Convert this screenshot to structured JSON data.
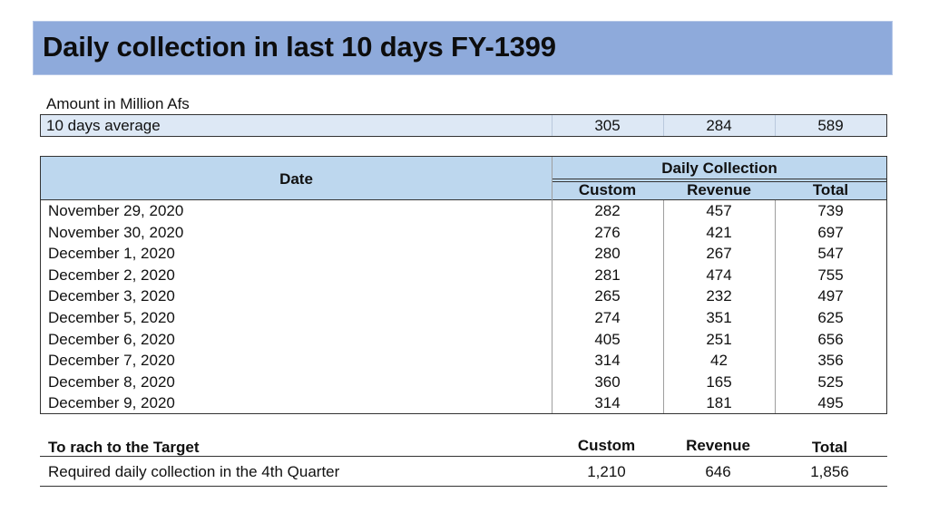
{
  "title": "Daily collection in last 10 days FY-1399",
  "unit_label": "Amount in Million Afs",
  "average": {
    "label": "10 days average",
    "custom": "305",
    "revenue": "284",
    "total": "589"
  },
  "table": {
    "date_header": "Date",
    "group_header": "Daily Collection",
    "columns": [
      "Custom",
      "Revenue",
      "Total"
    ],
    "rows": [
      {
        "date": "November 29, 2020",
        "custom": "282",
        "revenue": "457",
        "total": "739"
      },
      {
        "date": "November 30, 2020",
        "custom": "276",
        "revenue": "421",
        "total": "697"
      },
      {
        "date": "December 1, 2020",
        "custom": "280",
        "revenue": "267",
        "total": "547"
      },
      {
        "date": "December 2, 2020",
        "custom": "281",
        "revenue": "474",
        "total": "755"
      },
      {
        "date": "December 3, 2020",
        "custom": "265",
        "revenue": "232",
        "total": "497"
      },
      {
        "date": "December 5, 2020",
        "custom": "274",
        "revenue": "351",
        "total": "625"
      },
      {
        "date": "December 6, 2020",
        "custom": "405",
        "revenue": "251",
        "total": "656"
      },
      {
        "date": "December 7, 2020",
        "custom": "314",
        "revenue": "42",
        "total": "356"
      },
      {
        "date": "December 8, 2020",
        "custom": "360",
        "revenue": "165",
        "total": "525"
      },
      {
        "date": "December 9, 2020",
        "custom": "314",
        "revenue": "181",
        "total": "495"
      }
    ]
  },
  "target": {
    "heading": "To rach to the Target",
    "columns": [
      "Custom",
      "Revenue",
      "Total"
    ],
    "row_label": "Required daily collection in the 4th Quarter",
    "custom": "1,210",
    "revenue": "646",
    "total": "1,856"
  }
}
